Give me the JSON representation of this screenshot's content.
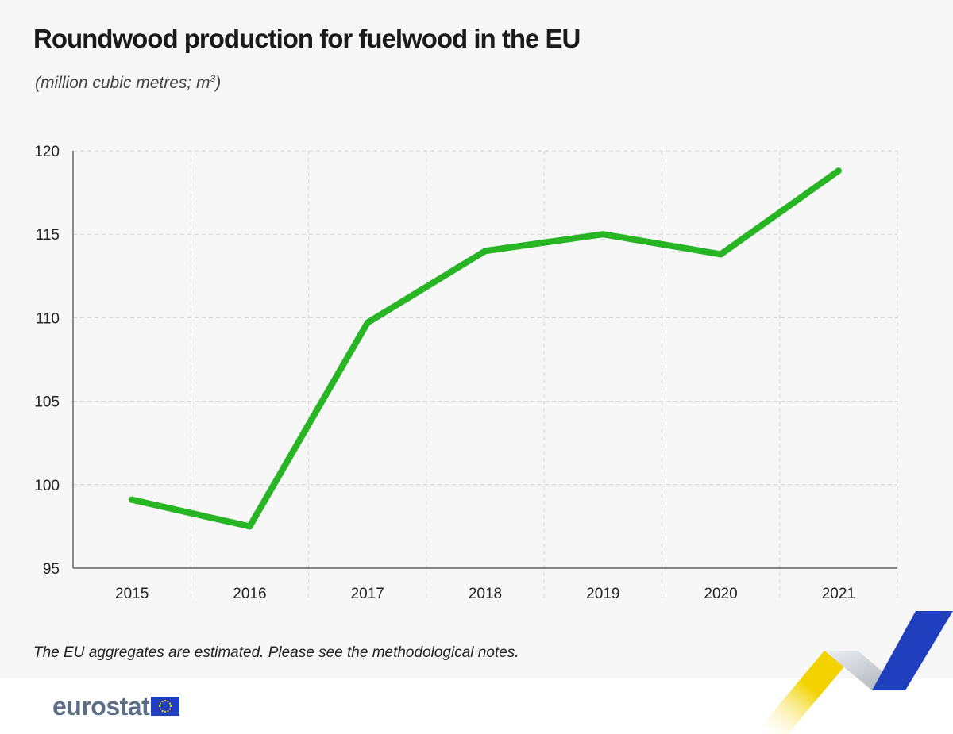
{
  "colors": {
    "line": "#27b524",
    "grid": "#d9d9d9",
    "axis": "#444444",
    "logo_text": "#5b6e86",
    "flag_blue": "#1f3fbf",
    "flag_star": "#ffd400",
    "ribbon_yellow": "#f2d300",
    "ribbon_grey": "#c8ccd2",
    "ribbon_blue": "#1f3fbf"
  },
  "logo": {
    "text": "eurostat",
    "flag_icon": "eu-flag-icon"
  },
  "footer": {
    "note": "The EU aggregates are estimated. Please see the methodological notes."
  },
  "chart_data": {
    "type": "line",
    "title": "Roundwood production for fuelwood in the EU",
    "subtitle": "(million cubic metres; m",
    "subtitle_sup": "3",
    "subtitle_close": ")",
    "xlabel": "",
    "ylabel": "",
    "categories": [
      "2015",
      "2016",
      "2017",
      "2018",
      "2019",
      "2020",
      "2021"
    ],
    "series": [
      {
        "name": "Roundwood production for fuelwood",
        "values": [
          99.1,
          97.5,
          109.7,
          114.0,
          115.0,
          113.8,
          118.8
        ]
      }
    ],
    "ylim": [
      95,
      120
    ],
    "yticks": [
      95,
      100,
      105,
      110,
      115,
      120
    ],
    "grid": true,
    "legend": "none"
  }
}
